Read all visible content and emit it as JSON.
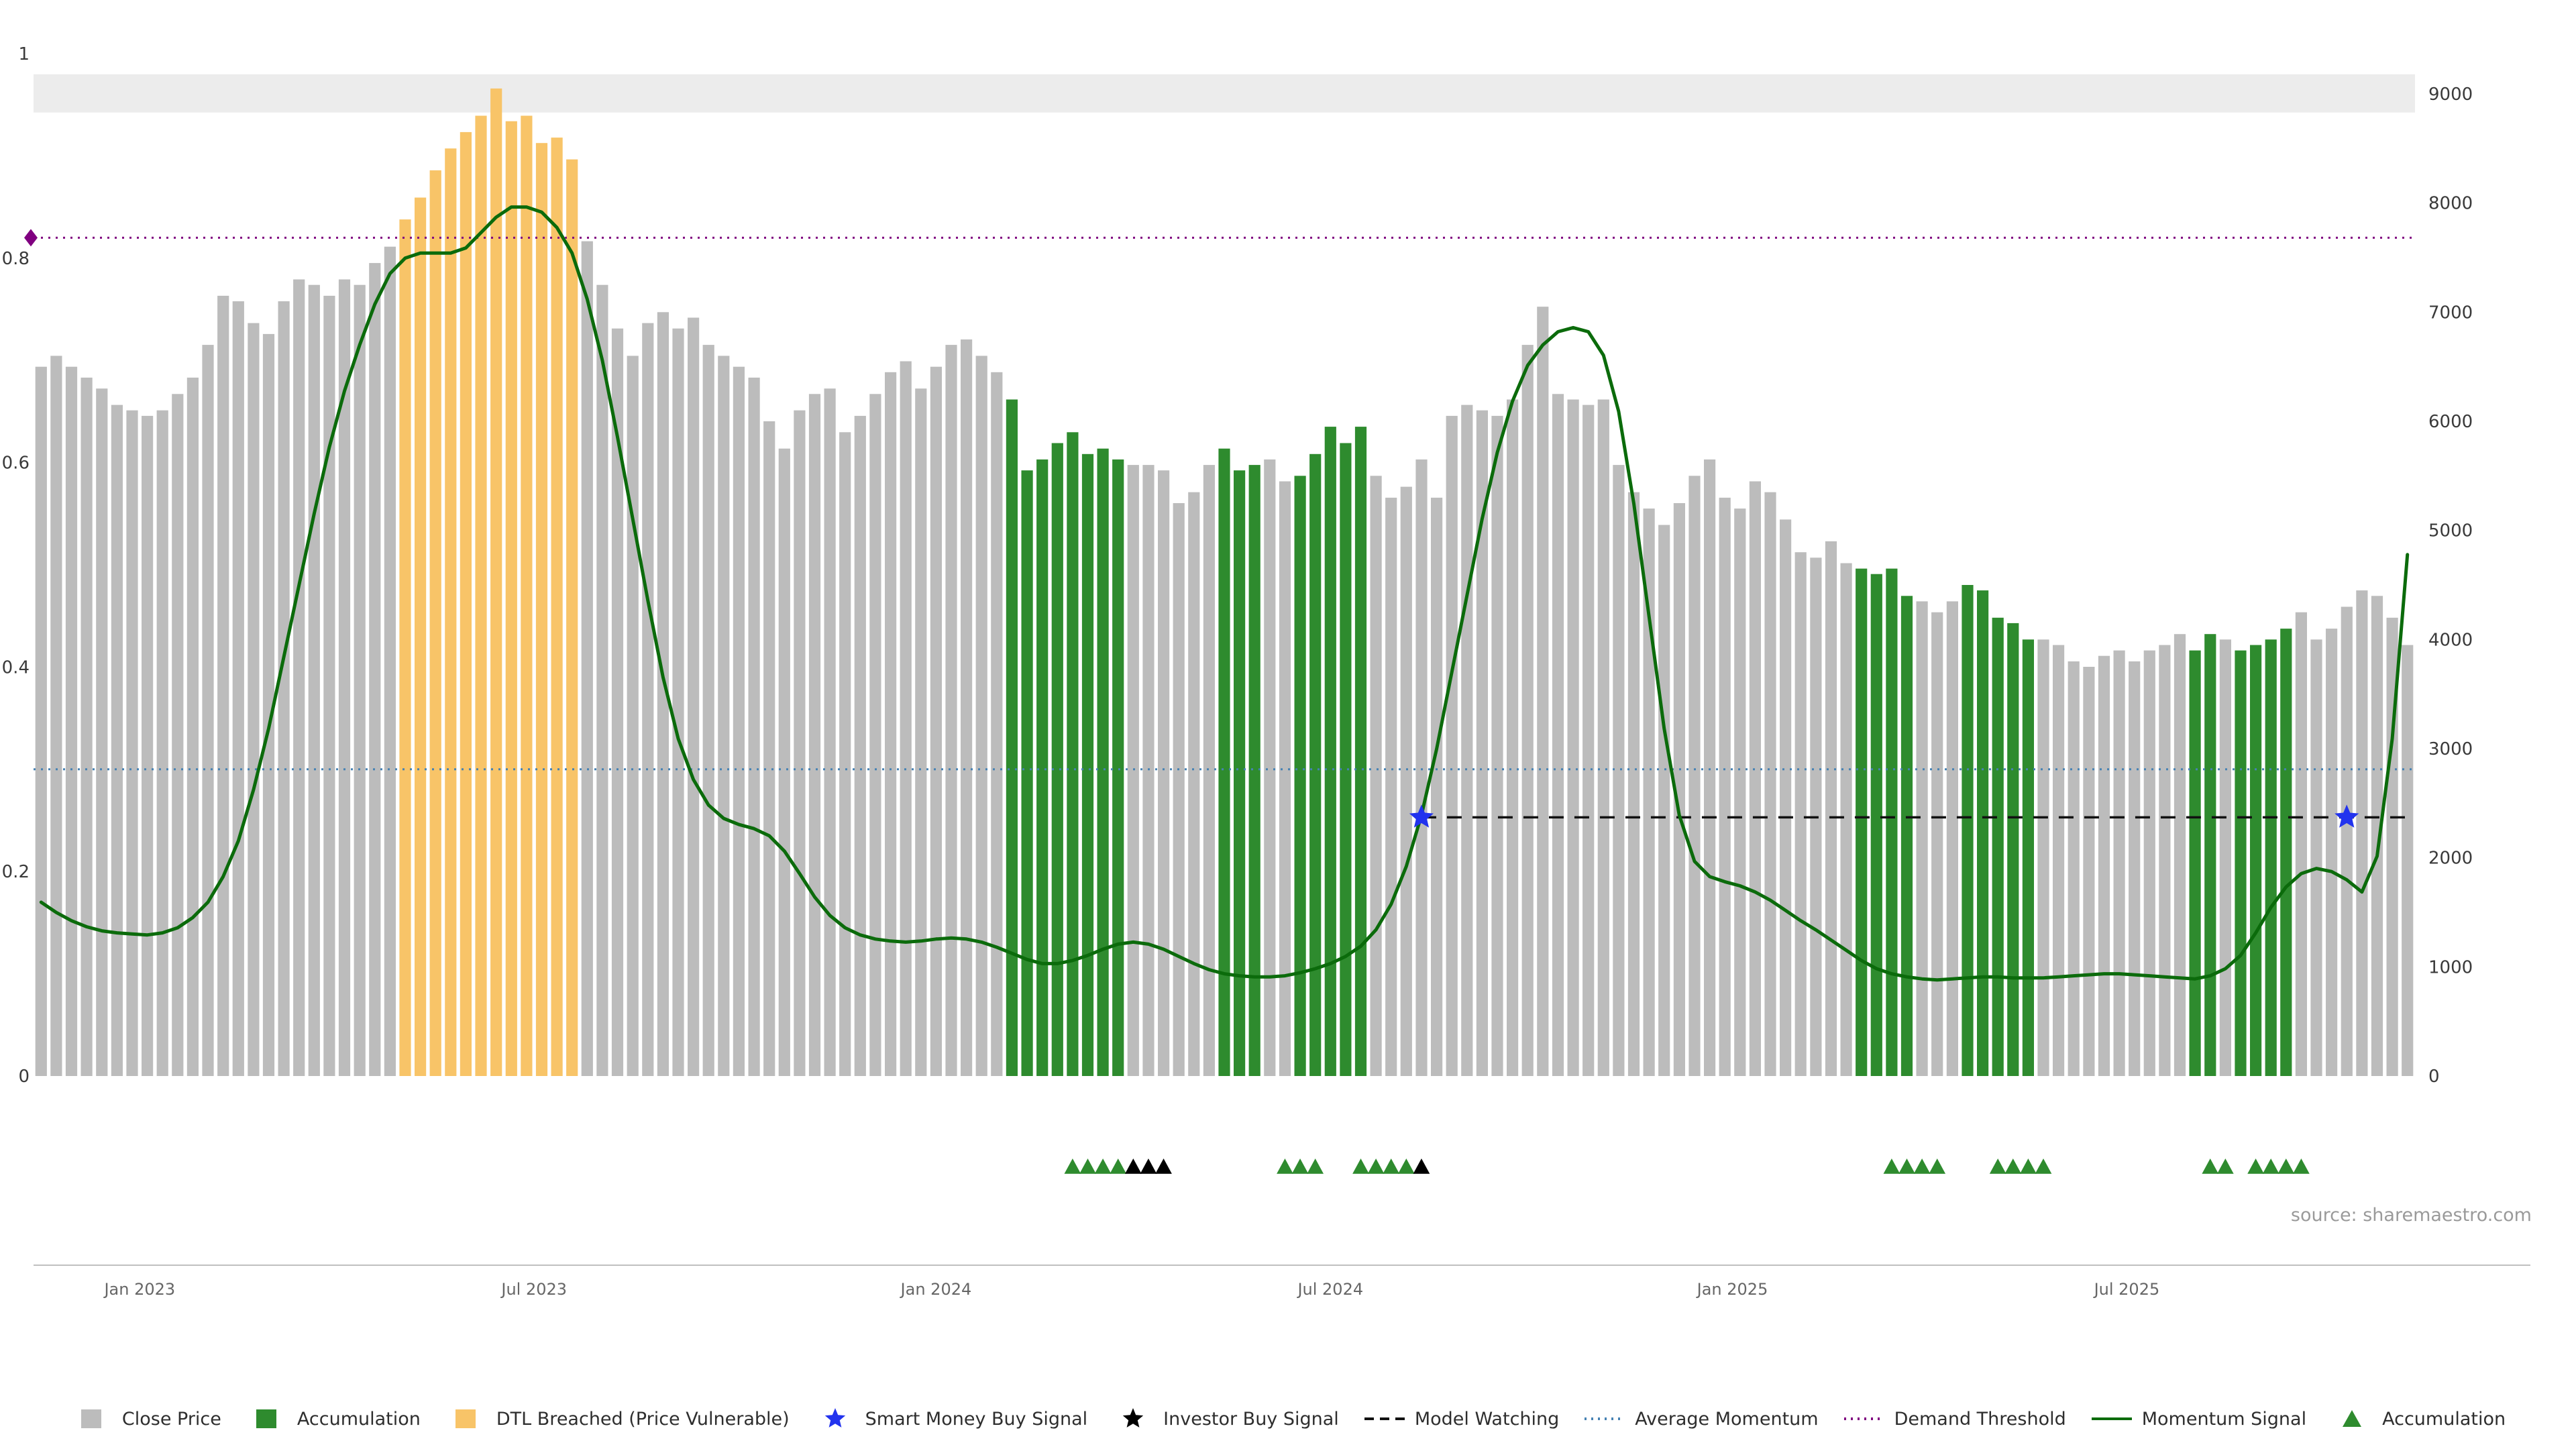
{
  "page": {
    "source_note": "source: sharemaestro.com"
  },
  "colors": {
    "close_price_bar": "#bcbcbc",
    "accumulation_bar": "#2e8b2e",
    "dtl_breached_bar": "#f8c468",
    "momentum_line": "#0b6b0b",
    "average_momentum_line": "#4682b4",
    "demand_threshold_line": "#800080",
    "model_watching_line": "#111111",
    "smart_money_star": "#2233ee",
    "investor_marker": "#000000",
    "accumulation_triangle": "#2e8b2e",
    "demand_diamond": "#800080",
    "highlight_band": "#ececec",
    "axis_text": "#3a3a3a",
    "date_text": "#666666",
    "axis_line": "#c0c0c0"
  },
  "chart_data": {
    "type": "bar",
    "title": "",
    "xlabel": "",
    "ylabel_left": "",
    "ylabel_right": "",
    "x_tick_labels": [
      "Jan 2023",
      "Jul 2023",
      "Jan 2024",
      "Jul 2024",
      "Jan 2025",
      "Jul 2025"
    ],
    "x_tick_indices": [
      7,
      33,
      59.5,
      85.5,
      112,
      138
    ],
    "left_axis": {
      "range": [
        0,
        1
      ],
      "ticks": [
        "0",
        "0.2",
        "0.4",
        "0.6",
        "0.8",
        "1"
      ],
      "tick_values": [
        0,
        0.2,
        0.4,
        0.6,
        0.8,
        1
      ]
    },
    "right_axis": {
      "range": [
        0,
        9000
      ],
      "ticks": [
        "0",
        "1000",
        "2000",
        "3000",
        "4000",
        "5000",
        "6000",
        "7000",
        "8000",
        "9000"
      ],
      "tick_values": [
        0,
        1000,
        2000,
        3000,
        4000,
        5000,
        6000,
        7000,
        8000,
        9000
      ]
    },
    "bar_values": [
      6500,
      6600,
      6500,
      6400,
      6300,
      6150,
      6100,
      6050,
      6100,
      6250,
      6400,
      6700,
      7150,
      7100,
      6900,
      6800,
      7100,
      7300,
      7250,
      7150,
      7300,
      7250,
      7450,
      7600,
      7850,
      8050,
      8300,
      8500,
      8650,
      8800,
      9050,
      8750,
      8800,
      8550,
      8600,
      8400,
      7650,
      7250,
      6850,
      6600,
      6900,
      7000,
      6850,
      6950,
      6700,
      6600,
      6500,
      6400,
      6000,
      5750,
      6100,
      6250,
      6300,
      5900,
      6050,
      6250,
      6450,
      6550,
      6300,
      6500,
      6700,
      6750,
      6600,
      6450,
      6200,
      5550,
      5650,
      5800,
      5900,
      5700,
      5750,
      5650,
      5600,
      5600,
      5550,
      5250,
      5350,
      5600,
      5750,
      5550,
      5600,
      5650,
      5450,
      5500,
      5700,
      5950,
      5800,
      5950,
      5500,
      5300,
      5400,
      5650,
      5300,
      6050,
      6150,
      6100,
      6050,
      6200,
      6700,
      7050,
      6250,
      6200,
      6150,
      6200,
      5600,
      5350,
      5200,
      5050,
      5250,
      5500,
      5650,
      5300,
      5200,
      5450,
      5350,
      5100,
      4800,
      4750,
      4900,
      4700,
      4650,
      4600,
      4650,
      4400,
      4350,
      4250,
      4350,
      4500,
      4450,
      4200,
      4150,
      4000,
      4000,
      3950,
      3800,
      3750,
      3850,
      3900,
      3800,
      3900,
      3950,
      4050,
      3900,
      4050,
      4000,
      3900,
      3950,
      4000,
      4100,
      4250,
      4000,
      4100,
      4300,
      4450,
      4400,
      4200,
      3950
    ],
    "bar_states": "ggggggggggggggggggggggggooooooooooooggggggggggggggggggggggggggggGGGGGGGGggggggGGGggGGGGGggggggggggggggggggggggggggggggggGGGGgggGGGGGggggggggggGGgGGGGggggggg",
    "momentum_values": [
      0.17,
      0.16,
      0.152,
      0.146,
      0.142,
      0.14,
      0.139,
      0.138,
      0.14,
      0.145,
      0.155,
      0.17,
      0.195,
      0.23,
      0.28,
      0.34,
      0.41,
      0.48,
      0.55,
      0.615,
      0.67,
      0.715,
      0.755,
      0.785,
      0.8,
      0.805,
      0.805,
      0.805,
      0.81,
      0.825,
      0.84,
      0.85,
      0.85,
      0.845,
      0.83,
      0.805,
      0.76,
      0.7,
      0.625,
      0.545,
      0.465,
      0.39,
      0.33,
      0.29,
      0.265,
      0.252,
      0.246,
      0.242,
      0.235,
      0.22,
      0.198,
      0.175,
      0.157,
      0.145,
      0.138,
      0.134,
      0.132,
      0.131,
      0.132,
      0.134,
      0.135,
      0.134,
      0.131,
      0.126,
      0.12,
      0.114,
      0.11,
      0.11,
      0.113,
      0.118,
      0.124,
      0.129,
      0.131,
      0.129,
      0.124,
      0.117,
      0.11,
      0.104,
      0.1,
      0.098,
      0.097,
      0.097,
      0.098,
      0.101,
      0.105,
      0.11,
      0.117,
      0.127,
      0.143,
      0.168,
      0.205,
      0.255,
      0.32,
      0.395,
      0.47,
      0.545,
      0.61,
      0.66,
      0.695,
      0.715,
      0.728,
      0.732,
      0.728,
      0.705,
      0.65,
      0.56,
      0.45,
      0.34,
      0.255,
      0.21,
      0.195,
      0.19,
      0.186,
      0.18,
      0.172,
      0.162,
      0.152,
      0.143,
      0.133,
      0.123,
      0.113,
      0.105,
      0.1,
      0.097,
      0.095,
      0.094,
      0.095,
      0.096,
      0.097,
      0.097,
      0.096,
      0.096,
      0.096,
      0.097,
      0.098,
      0.099,
      0.1,
      0.1,
      0.099,
      0.098,
      0.097,
      0.096,
      0.095,
      0.098,
      0.105,
      0.118,
      0.14,
      0.165,
      0.185,
      0.198,
      0.203,
      0.2,
      0.192,
      0.18,
      0.215,
      0.33,
      0.51
    ],
    "average_momentum_level": 0.3,
    "demand_threshold_level": 0.82,
    "model_watching": {
      "level": 0.253,
      "start_index": 91
    },
    "smart_money_buy_signals": [
      {
        "index": 91,
        "level": 0.253
      },
      {
        "index": 152,
        "level": 0.253
      }
    ],
    "investor_buy_marker_indices": [
      72,
      73,
      74,
      91
    ],
    "accumulation_marker_indices": [
      68,
      69,
      70,
      71,
      82,
      83,
      84,
      87,
      88,
      89,
      90,
      122,
      123,
      124,
      125,
      129,
      130,
      131,
      132,
      143,
      144,
      146,
      147,
      148,
      149
    ],
    "demand_marker": {
      "index": 0,
      "level": 0.82
    },
    "highlight_band": {
      "axis": "right",
      "from": 8830,
      "to": 9180
    }
  },
  "legend": {
    "items": [
      {
        "marker": "square",
        "color_key": "close_price_bar",
        "label": "Close Price"
      },
      {
        "marker": "square",
        "color_key": "accumulation_bar",
        "label": "Accumulation"
      },
      {
        "marker": "square",
        "color_key": "dtl_breached_bar",
        "label": "DTL Breached (Price Vulnerable)"
      },
      {
        "marker": "star",
        "color_key": "smart_money_star",
        "label": "Smart Money Buy Signal"
      },
      {
        "marker": "star",
        "color_key": "investor_marker",
        "label": "Investor Buy Signal"
      },
      {
        "marker": "dashed-line",
        "color_key": "model_watching_line",
        "label": "Model Watching"
      },
      {
        "marker": "dotted-line",
        "color_key": "average_momentum_line",
        "label": "Average Momentum"
      },
      {
        "marker": "dotted-line",
        "color_key": "demand_threshold_line",
        "label": "Demand Threshold"
      },
      {
        "marker": "solid-line",
        "color_key": "momentum_line",
        "label": "Momentum Signal"
      },
      {
        "marker": "triangle",
        "color_key": "accumulation_triangle",
        "label": "Accumulation"
      }
    ]
  }
}
